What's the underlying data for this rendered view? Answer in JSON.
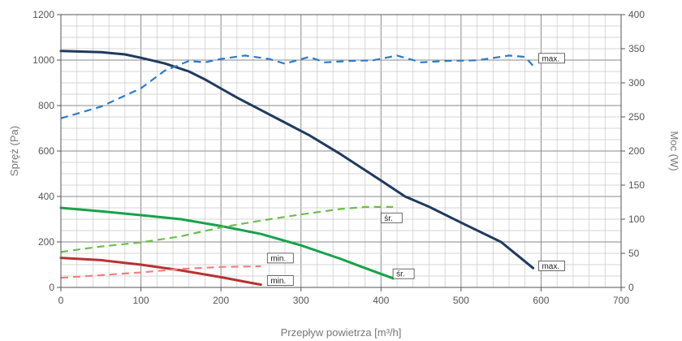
{
  "chart_data": {
    "type": "line",
    "xlabel": "Przepływ powietrza [m³/h]",
    "ylabel": "Spręż (Pa)",
    "y2label": "Moc (W)",
    "xlim": [
      0,
      700
    ],
    "ylim": [
      0,
      1200
    ],
    "y2lim": [
      0,
      400
    ],
    "xticks": [
      "0",
      "100",
      "200",
      "300",
      "400",
      "500",
      "600",
      "700"
    ],
    "yticks": [
      "0",
      "200",
      "400",
      "600",
      "800",
      "1000",
      "1200"
    ],
    "y2ticks": [
      "0",
      "50",
      "100",
      "150",
      "200",
      "250",
      "300",
      "350",
      "400"
    ],
    "grid": true,
    "colors": {
      "max": "#1f3a5f",
      "sr": "#16a34a",
      "min": "#b83232",
      "sr_power": "#6abf4b",
      "min_power": "#f08080",
      "max_power": "#2e7bc6"
    },
    "series": [
      {
        "key": "max",
        "axis": "left",
        "style": "solid",
        "label": "max.",
        "x": [
          0,
          50,
          80,
          100,
          130,
          160,
          180,
          200,
          220,
          250,
          280,
          310,
          350,
          400,
          430,
          460,
          500,
          550,
          590
        ],
        "y": [
          1040,
          1035,
          1025,
          1010,
          985,
          950,
          915,
          875,
          835,
          780,
          725,
          670,
          585,
          470,
          400,
          355,
          285,
          200,
          85
        ]
      },
      {
        "key": "sr",
        "axis": "left",
        "style": "solid",
        "label": "śr.",
        "x": [
          0,
          50,
          100,
          150,
          200,
          250,
          300,
          350,
          380,
          415
        ],
        "y": [
          350,
          335,
          318,
          300,
          270,
          235,
          185,
          125,
          85,
          40
        ]
      },
      {
        "key": "min",
        "axis": "left",
        "style": "solid",
        "label": "min.",
        "x": [
          0,
          50,
          100,
          150,
          200,
          230,
          250
        ],
        "y": [
          130,
          120,
          100,
          75,
          45,
          25,
          12
        ]
      },
      {
        "key": "max_power",
        "axis": "right",
        "style": "dashed",
        "label": "max.",
        "x": [
          0,
          50,
          100,
          130,
          160,
          180,
          200,
          230,
          260,
          280,
          310,
          330,
          360,
          390,
          420,
          450,
          480,
          520,
          560,
          580,
          590
        ],
        "y": [
          248,
          265,
          292,
          318,
          332,
          330,
          335,
          340,
          335,
          328,
          338,
          330,
          332,
          333,
          340,
          330,
          332,
          333,
          340,
          338,
          325
        ]
      },
      {
        "key": "sr_power",
        "axis": "right",
        "style": "dashed",
        "label": "śr.",
        "x": [
          0,
          50,
          100,
          150,
          200,
          250,
          300,
          350,
          380,
          415
        ],
        "y": [
          52,
          60,
          66,
          75,
          88,
          98,
          107,
          115,
          118,
          118
        ]
      },
      {
        "key": "min_power",
        "axis": "right",
        "style": "dashed",
        "label": "min.",
        "x": [
          0,
          50,
          100,
          150,
          200,
          250
        ],
        "y": [
          14,
          18,
          22,
          27,
          30,
          31
        ]
      }
    ],
    "labels": [
      {
        "text": "max.",
        "x": 597,
        "axis": "right",
        "y": 336
      },
      {
        "text": "max.",
        "x": 597,
        "axis": "left",
        "y": 95
      },
      {
        "text": "śr.",
        "x": 400,
        "axis": "right",
        "y": 102
      },
      {
        "text": "śr.",
        "x": 415,
        "axis": "left",
        "y": 60
      },
      {
        "text": "min.",
        "x": 258,
        "axis": "right",
        "y": 43
      },
      {
        "text": "min.",
        "x": 258,
        "axis": "left",
        "y": 30
      }
    ]
  }
}
